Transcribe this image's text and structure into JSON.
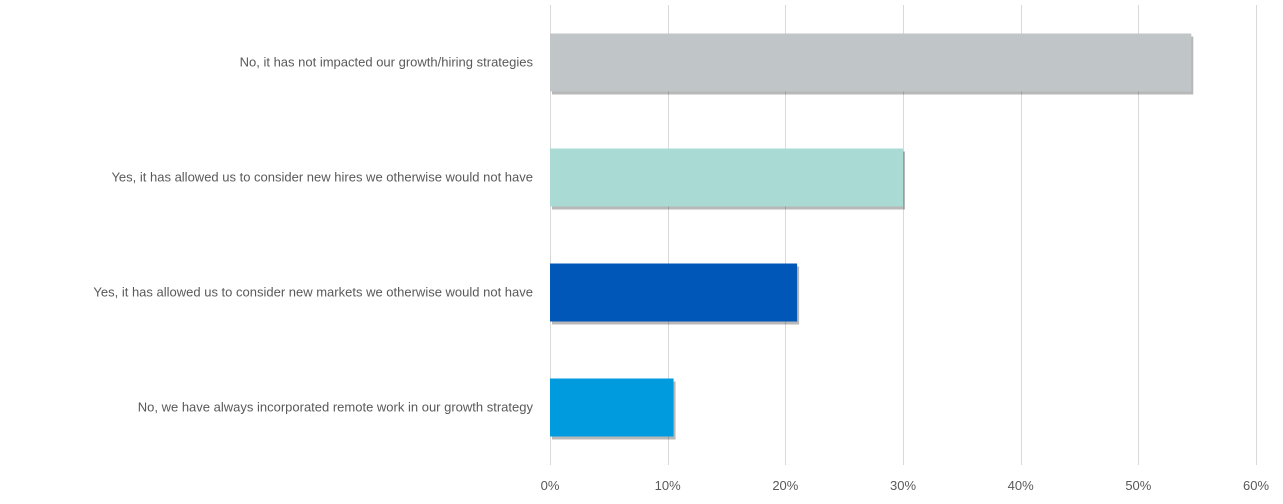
{
  "chart_data": {
    "type": "bar",
    "orientation": "horizontal",
    "categories": [
      "No, it has not impacted our growth/hiring strategies",
      "Yes, it has allowed us to consider new hires we otherwise would not have",
      "Yes, it has allowed us to consider new markets we otherwise would not have",
      "No, we have always incorporated remote work in our growth strategy"
    ],
    "values": [
      54.5,
      30,
      21,
      10.5
    ],
    "colors": [
      "#c0c5c8",
      "#a9dbd4",
      "#0057b8",
      "#009ade"
    ],
    "xlim": [
      0,
      60
    ],
    "x_ticks": [
      0,
      10,
      20,
      30,
      40,
      50,
      60
    ],
    "x_tick_labels": [
      "0%",
      "10%",
      "20%",
      "30%",
      "40%",
      "50%",
      "60%"
    ],
    "grid": "vertical",
    "legend": "none",
    "title": "",
    "xlabel": "",
    "ylabel": ""
  }
}
